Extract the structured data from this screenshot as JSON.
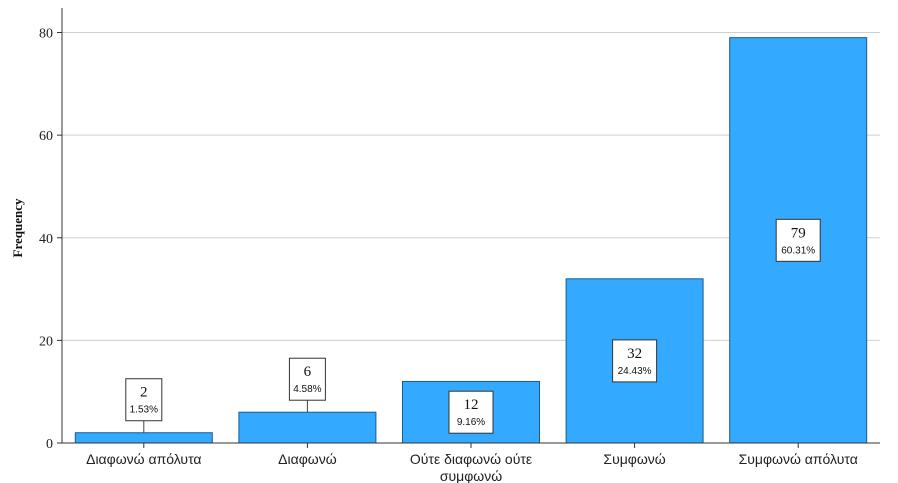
{
  "chart_data": {
    "type": "bar",
    "ylabel": "Frequency",
    "xlabel": "",
    "ylim": [
      0,
      84
    ],
    "yticks": [
      "0",
      "20",
      "40",
      "60",
      "80"
    ],
    "grid": true,
    "bar_color": "#33aaff",
    "categories": [
      "Διαφωνώ απόλυτα",
      "Διαφωνώ",
      "Ούτε διαφωνώ ούτε συμφωνώ",
      "Συμφωνώ",
      "Συμφωνώ απόλυτα"
    ],
    "values": [
      2,
      6,
      12,
      32,
      79
    ],
    "value_labels": [
      "2",
      "6",
      "12",
      "32",
      "79"
    ],
    "percent_labels": [
      "1.53%",
      "4.58%",
      "9.16%",
      "24.43%",
      "60.31%"
    ]
  }
}
